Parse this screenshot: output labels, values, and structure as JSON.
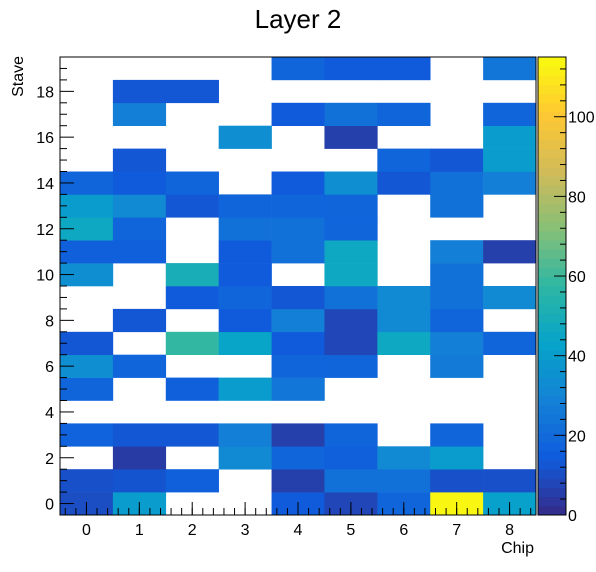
{
  "chart_data": {
    "type": "heatmap",
    "title": "Layer 2",
    "xlabel": "Chip",
    "ylabel": "Stave",
    "x_ticks": [
      "0",
      "1",
      "2",
      "3",
      "4",
      "5",
      "6",
      "7",
      "8"
    ],
    "y_ticks": [
      "0",
      "2",
      "4",
      "6",
      "8",
      "10",
      "12",
      "14",
      "16",
      "18"
    ],
    "x_range": [
      -0.5,
      8.5
    ],
    "y_range": [
      -0.5,
      19.5
    ],
    "z_range": [
      0,
      115
    ],
    "colorbar_ticks": [
      "0",
      "20",
      "40",
      "60",
      "80",
      "100"
    ],
    "grid": false,
    "colormap": [
      "#352a87",
      "#0f5cdd",
      "#1481d6",
      "#06a4ca",
      "#2eb7a4",
      "#87bf77",
      "#d1bb59",
      "#fec832",
      "#f9fb0e"
    ],
    "cells": [
      {
        "chip": 0,
        "stave": 0,
        "value": 10
      },
      {
        "chip": 1,
        "stave": 0,
        "value": 40
      },
      {
        "chip": 4,
        "stave": 0,
        "value": 14
      },
      {
        "chip": 5,
        "stave": 0,
        "value": 8
      },
      {
        "chip": 6,
        "stave": 0,
        "value": 18
      },
      {
        "chip": 7,
        "stave": 0,
        "value": 114
      },
      {
        "chip": 8,
        "stave": 0,
        "value": 42
      },
      {
        "chip": 0,
        "stave": 1,
        "value": 11
      },
      {
        "chip": 1,
        "stave": 1,
        "value": 12
      },
      {
        "chip": 2,
        "stave": 1,
        "value": 16
      },
      {
        "chip": 4,
        "stave": 1,
        "value": 6
      },
      {
        "chip": 5,
        "stave": 1,
        "value": 22
      },
      {
        "chip": 6,
        "stave": 1,
        "value": 22
      },
      {
        "chip": 7,
        "stave": 1,
        "value": 11
      },
      {
        "chip": 8,
        "stave": 1,
        "value": 11
      },
      {
        "chip": 1,
        "stave": 2,
        "value": 5
      },
      {
        "chip": 3,
        "stave": 2,
        "value": 32
      },
      {
        "chip": 4,
        "stave": 2,
        "value": 18
      },
      {
        "chip": 5,
        "stave": 2,
        "value": 16
      },
      {
        "chip": 6,
        "stave": 2,
        "value": 32
      },
      {
        "chip": 7,
        "stave": 2,
        "value": 40
      },
      {
        "chip": 0,
        "stave": 3,
        "value": 17
      },
      {
        "chip": 1,
        "stave": 3,
        "value": 13
      },
      {
        "chip": 2,
        "stave": 3,
        "value": 13
      },
      {
        "chip": 3,
        "stave": 3,
        "value": 28
      },
      {
        "chip": 4,
        "stave": 3,
        "value": 6
      },
      {
        "chip": 5,
        "stave": 3,
        "value": 18
      },
      {
        "chip": 7,
        "stave": 3,
        "value": 18
      },
      {
        "chip": 0,
        "stave": 5,
        "value": 18
      },
      {
        "chip": 2,
        "stave": 5,
        "value": 16
      },
      {
        "chip": 3,
        "stave": 5,
        "value": 40
      },
      {
        "chip": 4,
        "stave": 5,
        "value": 24
      },
      {
        "chip": 0,
        "stave": 6,
        "value": 34
      },
      {
        "chip": 1,
        "stave": 6,
        "value": 18
      },
      {
        "chip": 4,
        "stave": 6,
        "value": 18
      },
      {
        "chip": 5,
        "stave": 6,
        "value": 18
      },
      {
        "chip": 7,
        "stave": 6,
        "value": 26
      },
      {
        "chip": 0,
        "stave": 7,
        "value": 13
      },
      {
        "chip": 2,
        "stave": 7,
        "value": 58
      },
      {
        "chip": 3,
        "stave": 7,
        "value": 44
      },
      {
        "chip": 4,
        "stave": 7,
        "value": 14
      },
      {
        "chip": 5,
        "stave": 7,
        "value": 8
      },
      {
        "chip": 6,
        "stave": 7,
        "value": 46
      },
      {
        "chip": 7,
        "stave": 7,
        "value": 28
      },
      {
        "chip": 8,
        "stave": 7,
        "value": 18
      },
      {
        "chip": 1,
        "stave": 8,
        "value": 13
      },
      {
        "chip": 3,
        "stave": 8,
        "value": 14
      },
      {
        "chip": 4,
        "stave": 8,
        "value": 28
      },
      {
        "chip": 5,
        "stave": 8,
        "value": 8
      },
      {
        "chip": 6,
        "stave": 8,
        "value": 32
      },
      {
        "chip": 7,
        "stave": 8,
        "value": 18
      },
      {
        "chip": 2,
        "stave": 9,
        "value": 14
      },
      {
        "chip": 3,
        "stave": 9,
        "value": 18
      },
      {
        "chip": 4,
        "stave": 9,
        "value": 13
      },
      {
        "chip": 5,
        "stave": 9,
        "value": 22
      },
      {
        "chip": 6,
        "stave": 9,
        "value": 32
      },
      {
        "chip": 7,
        "stave": 9,
        "value": 22
      },
      {
        "chip": 8,
        "stave": 9,
        "value": 32
      },
      {
        "chip": 0,
        "stave": 10,
        "value": 34
      },
      {
        "chip": 2,
        "stave": 10,
        "value": 50
      },
      {
        "chip": 3,
        "stave": 10,
        "value": 14
      },
      {
        "chip": 5,
        "stave": 10,
        "value": 46
      },
      {
        "chip": 7,
        "stave": 10,
        "value": 22
      },
      {
        "chip": 0,
        "stave": 11,
        "value": 16
      },
      {
        "chip": 1,
        "stave": 11,
        "value": 16
      },
      {
        "chip": 3,
        "stave": 11,
        "value": 14
      },
      {
        "chip": 4,
        "stave": 11,
        "value": 22
      },
      {
        "chip": 5,
        "stave": 11,
        "value": 46
      },
      {
        "chip": 7,
        "stave": 11,
        "value": 28
      },
      {
        "chip": 8,
        "stave": 11,
        "value": 6
      },
      {
        "chip": 0,
        "stave": 12,
        "value": 46
      },
      {
        "chip": 1,
        "stave": 12,
        "value": 18
      },
      {
        "chip": 3,
        "stave": 12,
        "value": 22
      },
      {
        "chip": 4,
        "stave": 12,
        "value": 22
      },
      {
        "chip": 5,
        "stave": 12,
        "value": 18
      },
      {
        "chip": 0,
        "stave": 13,
        "value": 40
      },
      {
        "chip": 1,
        "stave": 13,
        "value": 32
      },
      {
        "chip": 2,
        "stave": 13,
        "value": 13
      },
      {
        "chip": 3,
        "stave": 13,
        "value": 18
      },
      {
        "chip": 4,
        "stave": 13,
        "value": 18
      },
      {
        "chip": 5,
        "stave": 13,
        "value": 18
      },
      {
        "chip": 7,
        "stave": 13,
        "value": 22
      },
      {
        "chip": 0,
        "stave": 14,
        "value": 18
      },
      {
        "chip": 1,
        "stave": 14,
        "value": 14
      },
      {
        "chip": 2,
        "stave": 14,
        "value": 18
      },
      {
        "chip": 4,
        "stave": 14,
        "value": 14
      },
      {
        "chip": 5,
        "stave": 14,
        "value": 34
      },
      {
        "chip": 6,
        "stave": 14,
        "value": 13
      },
      {
        "chip": 7,
        "stave": 14,
        "value": 22
      },
      {
        "chip": 8,
        "stave": 14,
        "value": 28
      },
      {
        "chip": 1,
        "stave": 15,
        "value": 13
      },
      {
        "chip": 6,
        "stave": 15,
        "value": 18
      },
      {
        "chip": 7,
        "stave": 15,
        "value": 13
      },
      {
        "chip": 8,
        "stave": 15,
        "value": 40
      },
      {
        "chip": 3,
        "stave": 16,
        "value": 34
      },
      {
        "chip": 5,
        "stave": 16,
        "value": 6
      },
      {
        "chip": 8,
        "stave": 16,
        "value": 40
      },
      {
        "chip": 1,
        "stave": 17,
        "value": 28
      },
      {
        "chip": 4,
        "stave": 17,
        "value": 14
      },
      {
        "chip": 5,
        "stave": 17,
        "value": 22
      },
      {
        "chip": 6,
        "stave": 17,
        "value": 18
      },
      {
        "chip": 8,
        "stave": 17,
        "value": 18
      },
      {
        "chip": 1,
        "stave": 18,
        "value": 13
      },
      {
        "chip": 2,
        "stave": 18,
        "value": 13
      },
      {
        "chip": 4,
        "stave": 19,
        "value": 18
      },
      {
        "chip": 5,
        "stave": 19,
        "value": 14
      },
      {
        "chip": 6,
        "stave": 19,
        "value": 14
      },
      {
        "chip": 8,
        "stave": 19,
        "value": 24
      }
    ]
  }
}
